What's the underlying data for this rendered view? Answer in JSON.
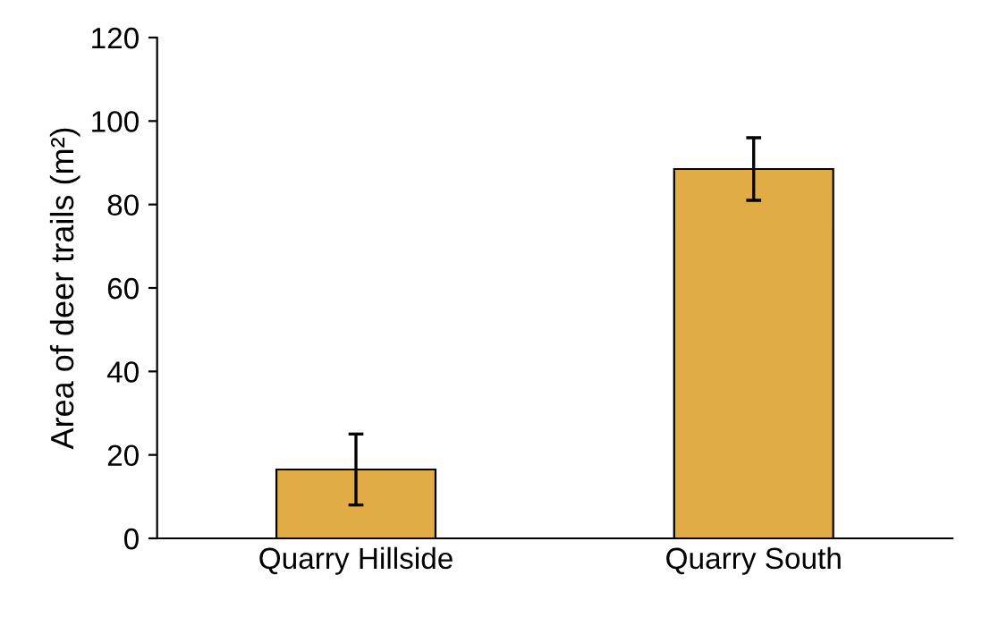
{
  "chart_data": {
    "type": "bar",
    "ylabel": "Area of deer trails (m²)",
    "categories": [
      "Quarry Hillside",
      "Quarry South"
    ],
    "values": [
      16.5,
      88.5
    ],
    "errors": [
      8.5,
      7.5
    ],
    "color": "#e1ac45",
    "ylim": [
      0,
      120
    ],
    "yticks": [
      0,
      20,
      40,
      60,
      80,
      100,
      120
    ],
    "grid": false,
    "legend": false
  }
}
